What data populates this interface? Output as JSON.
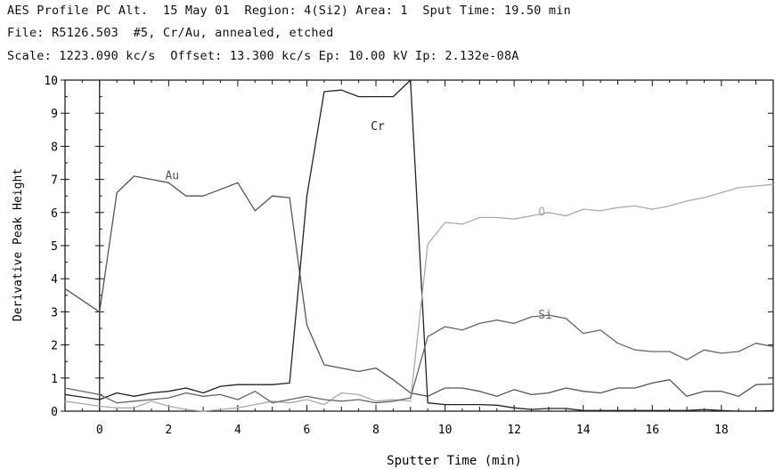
{
  "header": {
    "line1": "AES Profile PC Alt.  15 May 01  Region: 4(Si2) Area: 1  Sput Time: 19.50 min",
    "line2": "File: R5126.503  #5, Cr/Au, annealed, etched",
    "line3": "Scale: 1223.090 kc/s  Offset: 13.300 kc/s Ep: 10.00 kV Ip: 2.132e-08A"
  },
  "chart_data": {
    "type": "line",
    "xlabel": "Sputter Time (min)",
    "ylabel": "Derivative Peak Height",
    "xlim": [
      -1.0,
      19.5
    ],
    "ylim": [
      0,
      10
    ],
    "xticks": [
      0,
      2,
      4,
      6,
      8,
      10,
      12,
      14,
      16,
      18
    ],
    "yticks": [
      0,
      1,
      2,
      3,
      4,
      5,
      6,
      7,
      8,
      9,
      10
    ],
    "grid": false,
    "series": [
      {
        "name": "Au",
        "color": "#555555",
        "label_pos": [
          1.9,
          7.0
        ],
        "x": [
          -1.0,
          0.0,
          0.5,
          1.0,
          1.5,
          2.0,
          2.5,
          3.0,
          3.5,
          4.0,
          4.5,
          5.0,
          5.5,
          5.75,
          6.0,
          6.5,
          7.0,
          7.5,
          8.0,
          8.5,
          9.0,
          9.5,
          10.0,
          10.5,
          11.0,
          11.5,
          12.0,
          12.5,
          13.0,
          13.5,
          14.0,
          14.5,
          15.0,
          15.5,
          16.0,
          16.5,
          17.0,
          17.5,
          18.0,
          18.5,
          19.0,
          19.5
        ],
        "y": [
          3.7,
          3.0,
          6.6,
          7.1,
          7.0,
          6.9,
          6.5,
          6.5,
          6.7,
          6.9,
          6.05,
          6.5,
          6.45,
          4.5,
          2.6,
          1.4,
          1.3,
          1.2,
          1.3,
          0.95,
          0.55,
          0.45,
          0.7,
          0.7,
          0.6,
          0.45,
          0.65,
          0.5,
          0.55,
          0.7,
          0.6,
          0.55,
          0.7,
          0.7,
          0.85,
          0.95,
          0.45,
          0.6,
          0.6,
          0.45,
          0.8,
          0.82
        ]
      },
      {
        "name": "Cr",
        "color": "#222222",
        "label_pos": [
          7.85,
          8.5
        ],
        "x": [
          -1.0,
          0.0,
          0.5,
          1.0,
          1.5,
          2.0,
          2.5,
          3.0,
          3.5,
          4.0,
          4.5,
          5.0,
          5.5,
          6.0,
          6.5,
          7.0,
          7.5,
          8.0,
          8.5,
          9.0,
          9.5,
          10.0,
          10.5,
          11.0,
          11.5,
          12.0,
          12.5,
          13.0,
          13.5,
          14.0,
          14.5,
          15.0,
          15.5,
          16.0,
          16.5,
          17.0,
          17.5,
          18.0,
          18.5,
          19.0,
          19.5
        ],
        "y": [
          0.5,
          0.35,
          0.55,
          0.45,
          0.55,
          0.6,
          0.7,
          0.55,
          0.75,
          0.8,
          0.8,
          0.8,
          0.85,
          6.5,
          9.65,
          9.7,
          9.5,
          9.5,
          9.5,
          10.0,
          0.25,
          0.2,
          0.2,
          0.2,
          0.18,
          0.1,
          0.05,
          0.08,
          0.08,
          0.02,
          0.02,
          0.02,
          0.02,
          0.02,
          0.02,
          0.02,
          0.05,
          0.02,
          0.0,
          0.0,
          0.02
        ]
      },
      {
        "name": "O",
        "color": "#aaaaaa",
        "label_pos": [
          12.7,
          5.9
        ],
        "x": [
          -1.0,
          0.0,
          0.5,
          1.0,
          1.5,
          2.0,
          2.5,
          3.0,
          3.5,
          4.0,
          4.5,
          5.0,
          5.5,
          6.0,
          6.5,
          7.0,
          7.5,
          8.0,
          8.5,
          9.0,
          9.5,
          10.0,
          10.5,
          11.0,
          11.5,
          12.0,
          12.5,
          13.0,
          13.5,
          14.0,
          14.5,
          15.0,
          15.5,
          16.0,
          16.5,
          17.0,
          17.5,
          18.0,
          18.5,
          19.0,
          19.5
        ],
        "y": [
          0.3,
          0.15,
          0.1,
          0.1,
          0.3,
          0.15,
          0.05,
          0.0,
          0.05,
          0.1,
          0.2,
          0.3,
          0.25,
          0.35,
          0.2,
          0.55,
          0.5,
          0.3,
          0.35,
          0.3,
          5.05,
          5.7,
          5.65,
          5.85,
          5.85,
          5.8,
          5.9,
          6.0,
          5.9,
          6.1,
          6.05,
          6.15,
          6.2,
          6.1,
          6.2,
          6.35,
          6.45,
          6.6,
          6.75,
          6.8,
          6.85
        ]
      },
      {
        "name": "Si",
        "color": "#666666",
        "label_pos": [
          12.7,
          2.8
        ],
        "x": [
          -1.0,
          0.0,
          0.5,
          1.0,
          1.5,
          2.0,
          2.5,
          3.0,
          3.5,
          4.0,
          4.5,
          5.0,
          5.5,
          6.0,
          6.5,
          7.0,
          7.5,
          8.0,
          8.5,
          9.0,
          9.5,
          10.0,
          10.5,
          11.0,
          11.5,
          12.0,
          12.5,
          13.0,
          13.5,
          14.0,
          14.5,
          15.0,
          15.5,
          16.0,
          16.5,
          17.0,
          17.5,
          18.0,
          18.5,
          19.0,
          19.5
        ],
        "y": [
          0.7,
          0.5,
          0.25,
          0.3,
          0.35,
          0.4,
          0.55,
          0.45,
          0.5,
          0.35,
          0.6,
          0.25,
          0.35,
          0.45,
          0.35,
          0.3,
          0.35,
          0.25,
          0.3,
          0.4,
          2.25,
          2.55,
          2.45,
          2.65,
          2.75,
          2.65,
          2.85,
          2.9,
          2.8,
          2.35,
          2.45,
          2.05,
          1.85,
          1.8,
          1.8,
          1.55,
          1.85,
          1.75,
          1.8,
          2.05,
          1.95
        ]
      }
    ]
  }
}
